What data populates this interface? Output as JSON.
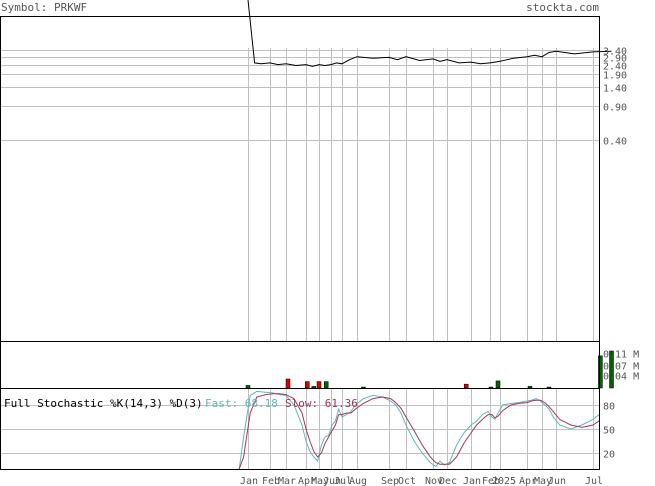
{
  "header": {
    "symbol_label": "Symbol: PRKWF",
    "site": "stockta.com"
  },
  "colors": {
    "grid": "#c0c0c0",
    "frame": "#000000",
    "text": "#555555",
    "volume_up": "#006400",
    "volume_down": "#dd0000",
    "fast_line": "#5fb8b8",
    "slow_line": "#aa3355",
    "background": "#ffffff"
  },
  "x_axis": {
    "tick_labels": [
      "Jan",
      "Feb",
      "Mar",
      "Apr",
      "May",
      "Jun",
      "Jul",
      "Aug",
      "Sep",
      "Oct",
      "Nov",
      "Dec",
      "Jan",
      "Feb",
      "2025",
      "Apr",
      "May",
      "Jun",
      "Jul"
    ]
  },
  "chart_data": [
    {
      "type": "line",
      "name": "price",
      "scale": "log",
      "y_tick_labels": [
        "3.40",
        "2.90",
        "2.40",
        "1.90",
        "1.40",
        "0.90",
        "0.40"
      ],
      "y_ticks": [
        3.4,
        2.9,
        2.4,
        1.9,
        1.4,
        0.9,
        0.4
      ],
      "x": [
        0,
        0.3,
        0.6,
        1.0,
        1.5,
        2.0,
        2.5,
        3.0,
        3.5,
        4.0,
        4.5,
        5.0,
        5.5,
        6.0,
        6.5,
        7.0,
        7.5,
        8.0,
        8.5,
        9.0,
        9.5,
        10.0,
        10.5,
        11.0,
        11.5,
        12.0,
        12.5,
        13.0,
        13.5,
        14.0,
        14.5,
        15.0,
        15.5,
        16.0,
        16.5,
        17.0,
        17.5,
        18.0,
        18.5
      ],
      "y": [
        12.0,
        2.5,
        2.45,
        2.5,
        2.4,
        2.45,
        2.35,
        2.4,
        2.3,
        2.4,
        2.35,
        2.4,
        2.5,
        2.45,
        2.7,
        2.9,
        2.8,
        2.85,
        2.7,
        2.9,
        2.65,
        2.75,
        2.6,
        2.7,
        2.5,
        2.55,
        2.45,
        2.5,
        2.55,
        2.6,
        2.8,
        2.9,
        3.0,
        2.9,
        3.2,
        3.3,
        3.1,
        3.25,
        3.3
      ]
    },
    {
      "type": "bar",
      "name": "volume",
      "unit": "M",
      "y_tick_labels": [
        "0.11 M",
        "0.07 M",
        "0.04 M"
      ],
      "y_ticks": [
        0.11,
        0.07,
        0.04
      ],
      "bars": [
        {
          "x": 0.0,
          "value": 0.008,
          "direction": "up"
        },
        {
          "x": 2.1,
          "value": 0.028,
          "direction": "down"
        },
        {
          "x": 3.1,
          "value": 0.02,
          "direction": "down"
        },
        {
          "x": 3.6,
          "value": 0.005,
          "direction": "up"
        },
        {
          "x": 4.0,
          "value": 0.02,
          "direction": "down"
        },
        {
          "x": 4.6,
          "value": 0.02,
          "direction": "up"
        },
        {
          "x": 7.2,
          "value": 0.003,
          "direction": "up"
        },
        {
          "x": 11.8,
          "value": 0.012,
          "direction": "down"
        },
        {
          "x": 13.1,
          "value": 0.003,
          "direction": "down"
        },
        {
          "x": 13.8,
          "value": 0.022,
          "direction": "up"
        },
        {
          "x": 15.2,
          "value": 0.005,
          "direction": "up"
        },
        {
          "x": 16.5,
          "value": 0.003,
          "direction": "up"
        },
        {
          "x": 18.2,
          "value": 0.1,
          "direction": "up"
        },
        {
          "x": 18.5,
          "value": 0.115,
          "direction": "up"
        }
      ]
    },
    {
      "type": "line",
      "name": "stochastic",
      "title": "Full Stochastic %K(14,3) %D(3)",
      "fast_label": "Fast: 68.18",
      "slow_label": "Slow: 61.36",
      "ylim": [
        0,
        100
      ],
      "y_tick_labels": [
        "80",
        "50",
        "20"
      ],
      "y_ticks": [
        80,
        50,
        20
      ],
      "x": [
        -0.4,
        -0.2,
        0.1,
        0.4,
        0.8,
        1.2,
        1.6,
        2.0,
        2.4,
        2.8,
        3.0,
        3.3,
        3.6,
        3.9,
        4.2,
        4.5,
        4.8,
        5.1,
        5.4,
        5.7,
        6.0,
        6.3,
        6.6,
        6.9,
        7.2,
        7.5,
        7.8,
        8.1,
        8.4,
        8.7,
        9.0,
        9.3,
        9.6,
        9.9,
        10.2,
        10.5,
        10.8,
        11.1,
        11.4,
        11.7,
        12.0,
        12.3,
        12.6,
        12.9,
        13.2,
        13.5,
        13.8,
        14.1,
        14.4,
        14.7,
        15.0,
        15.3,
        15.6,
        15.9,
        16.2,
        16.5,
        16.8,
        17.1,
        17.4,
        17.7,
        18.0,
        18.3,
        18.5
      ],
      "fast": [
        0,
        40,
        92,
        97,
        96,
        95,
        93,
        92,
        80,
        55,
        35,
        22,
        15,
        10,
        30,
        40,
        42,
        55,
        60,
        75,
        65,
        68,
        72,
        80,
        88,
        92,
        90,
        85,
        80,
        70,
        55,
        35,
        20,
        8,
        3,
        10,
        5,
        8,
        30,
        45,
        55,
        60,
        68,
        72,
        65,
        62,
        70,
        80,
        82,
        83,
        85,
        86,
        88,
        85,
        80,
        75,
        65,
        55,
        50,
        55,
        62,
        68,
        68
      ],
      "slow": [
        0,
        15,
        70,
        90,
        93,
        94,
        94,
        93,
        88,
        70,
        50,
        35,
        22,
        15,
        20,
        32,
        40,
        48,
        55,
        68,
        68,
        70,
        70,
        75,
        82,
        88,
        90,
        88,
        83,
        76,
        65,
        48,
        30,
        15,
        8,
        6,
        6,
        6,
        15,
        32,
        45,
        55,
        62,
        68,
        68,
        64,
        66,
        73,
        80,
        82,
        83,
        85,
        86,
        86,
        83,
        78,
        72,
        62,
        55,
        52,
        55,
        60,
        61
      ]
    }
  ]
}
